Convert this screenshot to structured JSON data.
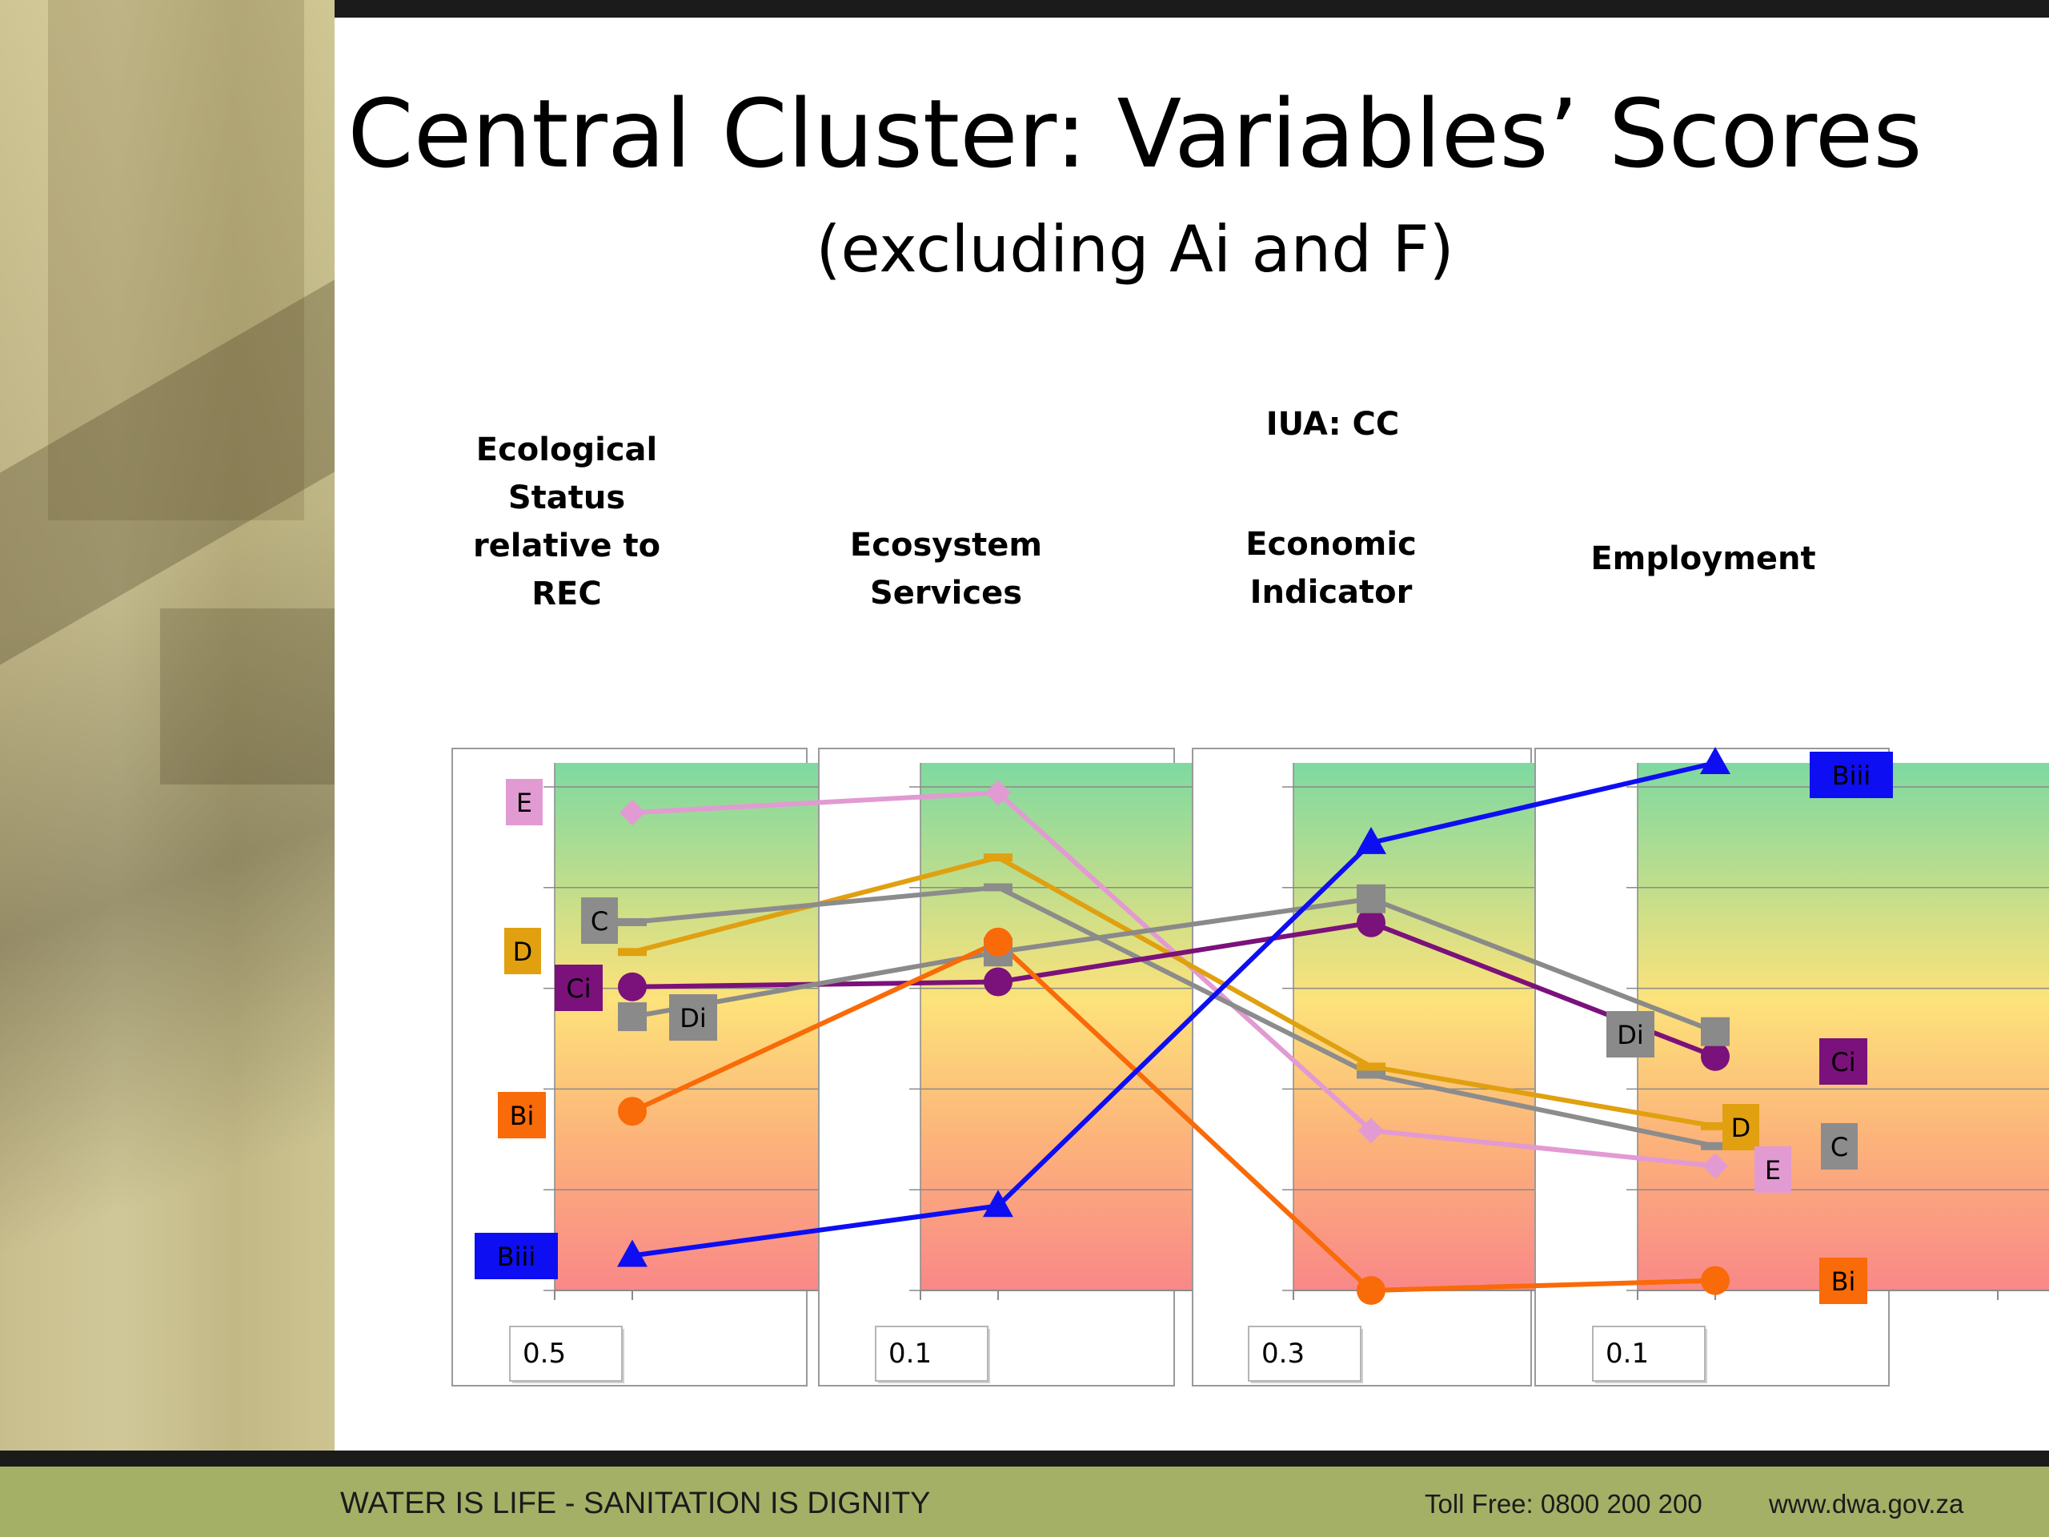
{
  "title": "Central Cluster: Variables’ Scores",
  "subtitle": "(excluding Ai and F)",
  "footer": {
    "slogan": "WATER IS LIFE - SANITATION IS DIGNITY",
    "toll_free": "Toll Free: 0800 200 200",
    "website": "www.dwa.gov.za"
  },
  "chart_data": {
    "type": "line",
    "title": "IUA: CC",
    "categories": [
      {
        "label": [
          "Ecological",
          "Status",
          "relative to",
          "REC"
        ],
        "weight": "0.5",
        "ymin": 0,
        "ymax": 5.3
      },
      {
        "label": [
          "Ecosystem",
          "Services"
        ],
        "weight": "0.1",
        "ymin": 0,
        "ymax": 5.3
      },
      {
        "label": [
          "Economic",
          "Indicator"
        ],
        "weight": "0.3",
        "ymin": 0,
        "ymax": 6.6
      },
      {
        "label": [
          "Employment"
        ],
        "weight": "0.1",
        "ymin": 0,
        "ymax": 5.3
      }
    ],
    "y_scale": "normalized per axis",
    "grid": true,
    "series": [
      {
        "name": "E",
        "color": "#e29ad2",
        "marker": "diamond",
        "values": [
          4.8,
          5.0,
          2.0,
          1.25
        ]
      },
      {
        "name": "D",
        "color": "#e0a010",
        "marker": "dash",
        "values": [
          3.4,
          4.35,
          2.8,
          1.65
        ]
      },
      {
        "name": "C",
        "color": "#8c8c8c",
        "marker": "dash",
        "values": [
          3.7,
          4.05,
          2.7,
          1.45
        ]
      },
      {
        "name": "Ci",
        "color": "#7b117b",
        "marker": "circle",
        "values": [
          3.05,
          3.1,
          4.6,
          2.35
        ]
      },
      {
        "name": "Di",
        "color": "#8a8a8a",
        "marker": "square",
        "values": [
          2.75,
          3.4,
          4.9,
          2.6
        ]
      },
      {
        "name": "Bi",
        "color": "#f96a08",
        "marker": "circle",
        "values": [
          1.8,
          3.5,
          0.0,
          0.1
        ]
      },
      {
        "name": "Biii",
        "color": "#0e0ef2",
        "marker": "triangle",
        "values": [
          0.35,
          0.85,
          5.6,
          5.3
        ]
      }
    ],
    "left_labels": [
      {
        "name": "E",
        "color": "#e29ad2"
      },
      {
        "name": "C",
        "color": "#8c8c8c"
      },
      {
        "name": "D",
        "color": "#e0a010"
      },
      {
        "name": "Ci",
        "color": "#7b117b"
      },
      {
        "name": "Di",
        "color": "#8a8a8a"
      },
      {
        "name": "Bi",
        "color": "#f96a08"
      },
      {
        "name": "Biii",
        "color": "#0e0ef2"
      }
    ],
    "right_labels": [
      {
        "name": "Biii",
        "color": "#0e0ef2"
      },
      {
        "name": "Di",
        "color": "#8a8a8a"
      },
      {
        "name": "Ci",
        "color": "#7b117b"
      },
      {
        "name": "D",
        "color": "#e0a010"
      },
      {
        "name": "C",
        "color": "#8c8c8c"
      },
      {
        "name": "E",
        "color": "#e29ad2"
      },
      {
        "name": "Bi",
        "color": "#f96a08"
      }
    ]
  }
}
